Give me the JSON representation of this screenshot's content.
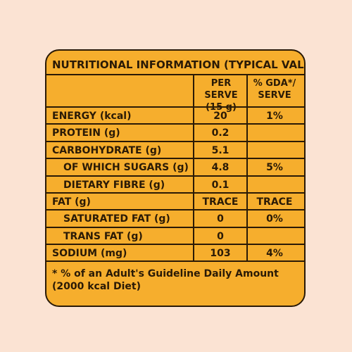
{
  "label": {
    "title": "NUTRITIONAL INFORMATION (TYPICAL VALUES)",
    "col_per_serve_1": "PER SERVE",
    "col_per_serve_2": "(15 g)",
    "col_gda_1": "% GDA*/",
    "col_gda_2": "SERVE",
    "rows": [
      {
        "name": "ENERGY (kcal)",
        "per_serve": "20",
        "gda": "1%",
        "indent": false
      },
      {
        "name": "PROTEIN (g)",
        "per_serve": "0.2",
        "gda": "",
        "indent": false
      },
      {
        "name": "CARBOHYDRATE (g)",
        "per_serve": "5.1",
        "gda": "",
        "indent": false
      },
      {
        "name": "OF WHICH SUGARS (g)",
        "per_serve": "4.8",
        "gda": "5%",
        "indent": true
      },
      {
        "name": "DIETARY FIBRE (g)",
        "per_serve": "0.1",
        "gda": "",
        "indent": true
      },
      {
        "name": "FAT (g)",
        "per_serve": "TRACE",
        "gda": "TRACE",
        "indent": false
      },
      {
        "name": "SATURATED FAT (g)",
        "per_serve": "0",
        "gda": "0%",
        "indent": true
      },
      {
        "name": "TRANS FAT (g)",
        "per_serve": "0",
        "gda": "",
        "indent": true
      },
      {
        "name": "SODIUM (mg)",
        "per_serve": "103",
        "gda": "4%",
        "indent": false
      }
    ],
    "footnote_1": "* % of an Adult's Guideline Daily Amount",
    "footnote_2": "(2000 kcal Diet)"
  },
  "colors": {
    "background": "#fbe3d3",
    "panel": "#f6ae2d",
    "ink": "#2a1a06"
  }
}
